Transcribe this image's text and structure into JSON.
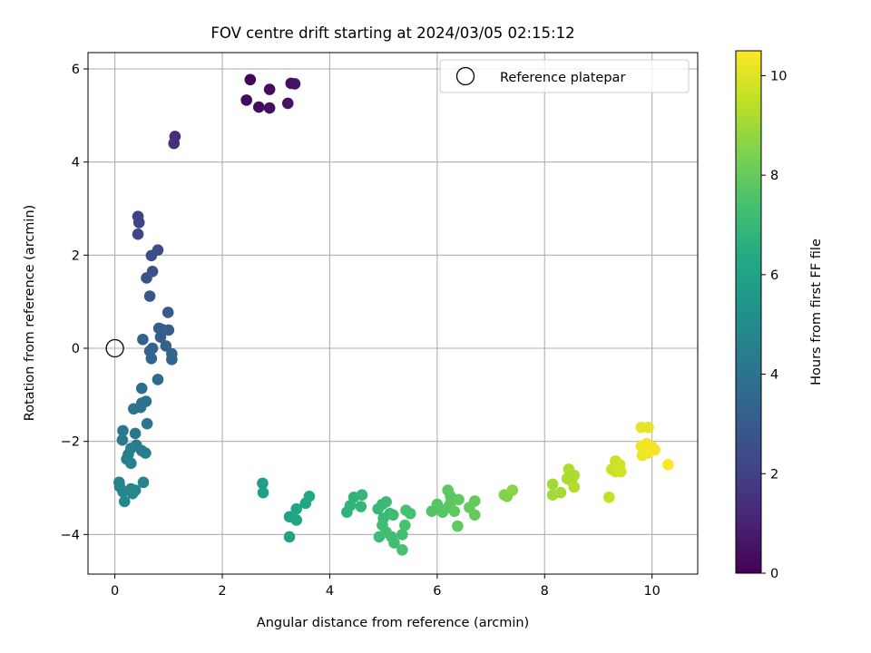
{
  "chart_data": {
    "type": "scatter",
    "title": "FOV centre drift starting at 2024/03/05 02:15:12",
    "xlabel": "Angular distance from reference (arcmin)",
    "ylabel": "Rotation from reference (arcmin)",
    "xlim": [
      -0.5,
      10.85
    ],
    "ylim": [
      -4.85,
      6.35
    ],
    "xticks": [
      0,
      2,
      4,
      6,
      8,
      10
    ],
    "yticks": [
      -4,
      -2,
      0,
      2,
      4,
      6
    ],
    "grid": true,
    "legend": {
      "position": "top-right",
      "entries": [
        "Reference platepar"
      ]
    },
    "reference_point": {
      "x": 0,
      "y": 0
    },
    "colorbar": {
      "label": "Hours from first FF file",
      "range": [
        0,
        10.5
      ],
      "ticks": [
        0,
        2,
        4,
        6,
        8,
        10
      ],
      "colormap": "viridis"
    },
    "points": [
      {
        "x": 2.52,
        "y": 5.77,
        "c": 0.1
      },
      {
        "x": 2.45,
        "y": 5.33,
        "c": 0.2
      },
      {
        "x": 2.68,
        "y": 5.18,
        "c": 0.3
      },
      {
        "x": 2.88,
        "y": 5.56,
        "c": 0.3
      },
      {
        "x": 2.88,
        "y": 5.16,
        "c": 0.4
      },
      {
        "x": 3.22,
        "y": 5.26,
        "c": 0.5
      },
      {
        "x": 3.28,
        "y": 5.69,
        "c": 0.4
      },
      {
        "x": 3.35,
        "y": 5.68,
        "c": 0.5
      },
      {
        "x": 1.12,
        "y": 4.55,
        "c": 1.3
      },
      {
        "x": 1.1,
        "y": 4.4,
        "c": 1.4
      },
      {
        "x": 0.43,
        "y": 2.83,
        "c": 2.0
      },
      {
        "x": 0.45,
        "y": 2.7,
        "c": 2.1
      },
      {
        "x": 0.43,
        "y": 2.45,
        "c": 2.2
      },
      {
        "x": 0.8,
        "y": 2.11,
        "c": 2.4
      },
      {
        "x": 0.68,
        "y": 1.99,
        "c": 2.5
      },
      {
        "x": 0.7,
        "y": 1.65,
        "c": 2.6
      },
      {
        "x": 0.59,
        "y": 1.51,
        "c": 2.7
      },
      {
        "x": 0.65,
        "y": 1.12,
        "c": 2.8
      },
      {
        "x": 0.99,
        "y": 0.77,
        "c": 2.9
      },
      {
        "x": 0.82,
        "y": 0.43,
        "c": 3.0
      },
      {
        "x": 0.88,
        "y": 0.4,
        "c": 3.0
      },
      {
        "x": 1.0,
        "y": 0.39,
        "c": 3.1
      },
      {
        "x": 0.85,
        "y": 0.24,
        "c": 3.1
      },
      {
        "x": 0.52,
        "y": 0.19,
        "c": 3.2
      },
      {
        "x": 0.7,
        "y": 0.0,
        "c": 3.2
      },
      {
        "x": 0.95,
        "y": 0.05,
        "c": 3.3
      },
      {
        "x": 0.65,
        "y": -0.06,
        "c": 3.3
      },
      {
        "x": 0.68,
        "y": -0.22,
        "c": 3.4
      },
      {
        "x": 1.06,
        "y": -0.12,
        "c": 3.4
      },
      {
        "x": 1.06,
        "y": -0.24,
        "c": 3.4
      },
      {
        "x": 0.8,
        "y": -0.67,
        "c": 3.6
      },
      {
        "x": 0.5,
        "y": -0.86,
        "c": 3.8
      },
      {
        "x": 0.5,
        "y": -1.18,
        "c": 3.9
      },
      {
        "x": 0.58,
        "y": -1.14,
        "c": 3.9
      },
      {
        "x": 0.35,
        "y": -1.3,
        "c": 4.0
      },
      {
        "x": 0.48,
        "y": -1.27,
        "c": 4.0
      },
      {
        "x": 0.6,
        "y": -1.62,
        "c": 4.1
      },
      {
        "x": 0.15,
        "y": -1.77,
        "c": 4.2
      },
      {
        "x": 0.38,
        "y": -1.83,
        "c": 4.2
      },
      {
        "x": 0.14,
        "y": -1.97,
        "c": 4.3
      },
      {
        "x": 0.4,
        "y": -2.08,
        "c": 4.3
      },
      {
        "x": 0.3,
        "y": -2.15,
        "c": 4.4
      },
      {
        "x": 0.5,
        "y": -2.2,
        "c": 4.4
      },
      {
        "x": 0.57,
        "y": -2.25,
        "c": 4.5
      },
      {
        "x": 0.25,
        "y": -2.28,
        "c": 4.5
      },
      {
        "x": 0.22,
        "y": -2.38,
        "c": 4.5
      },
      {
        "x": 0.3,
        "y": -2.47,
        "c": 4.6
      },
      {
        "x": 0.08,
        "y": -2.88,
        "c": 4.7
      },
      {
        "x": 0.09,
        "y": -2.97,
        "c": 4.7
      },
      {
        "x": 0.53,
        "y": -2.88,
        "c": 4.7
      },
      {
        "x": 0.3,
        "y": -3.02,
        "c": 4.8
      },
      {
        "x": 0.38,
        "y": -3.05,
        "c": 4.8
      },
      {
        "x": 0.15,
        "y": -3.08,
        "c": 4.8
      },
      {
        "x": 0.33,
        "y": -3.12,
        "c": 4.9
      },
      {
        "x": 0.18,
        "y": -3.29,
        "c": 4.9
      },
      {
        "x": 2.75,
        "y": -2.9,
        "c": 5.8
      },
      {
        "x": 2.76,
        "y": -3.1,
        "c": 5.8
      },
      {
        "x": 3.25,
        "y": -3.62,
        "c": 6.0
      },
      {
        "x": 3.38,
        "y": -3.45,
        "c": 6.1
      },
      {
        "x": 3.38,
        "y": -3.69,
        "c": 6.1
      },
      {
        "x": 3.25,
        "y": -4.05,
        "c": 6.0
      },
      {
        "x": 3.55,
        "y": -3.33,
        "c": 6.2
      },
      {
        "x": 3.62,
        "y": -3.18,
        "c": 6.3
      },
      {
        "x": 4.32,
        "y": -3.52,
        "c": 6.7
      },
      {
        "x": 4.38,
        "y": -3.38,
        "c": 6.8
      },
      {
        "x": 4.45,
        "y": -3.2,
        "c": 6.8
      },
      {
        "x": 4.6,
        "y": -3.15,
        "c": 6.9
      },
      {
        "x": 4.58,
        "y": -3.4,
        "c": 6.9
      },
      {
        "x": 4.9,
        "y": -3.45,
        "c": 7.0
      },
      {
        "x": 4.98,
        "y": -3.35,
        "c": 7.0
      },
      {
        "x": 5.05,
        "y": -3.3,
        "c": 7.1
      },
      {
        "x": 5.12,
        "y": -3.55,
        "c": 7.1
      },
      {
        "x": 5.0,
        "y": -3.65,
        "c": 7.1
      },
      {
        "x": 5.18,
        "y": -3.58,
        "c": 7.2
      },
      {
        "x": 4.98,
        "y": -3.8,
        "c": 7.2
      },
      {
        "x": 5.05,
        "y": -3.95,
        "c": 7.2
      },
      {
        "x": 5.15,
        "y": -4.05,
        "c": 7.3
      },
      {
        "x": 4.92,
        "y": -4.05,
        "c": 7.2
      },
      {
        "x": 5.2,
        "y": -4.18,
        "c": 7.3
      },
      {
        "x": 5.35,
        "y": -4.0,
        "c": 7.3
      },
      {
        "x": 5.4,
        "y": -3.8,
        "c": 7.4
      },
      {
        "x": 5.42,
        "y": -3.48,
        "c": 7.4
      },
      {
        "x": 5.5,
        "y": -3.55,
        "c": 7.4
      },
      {
        "x": 5.35,
        "y": -4.33,
        "c": 7.4
      },
      {
        "x": 5.9,
        "y": -3.5,
        "c": 7.6
      },
      {
        "x": 6.0,
        "y": -3.35,
        "c": 7.7
      },
      {
        "x": 6.1,
        "y": -3.52,
        "c": 7.7
      },
      {
        "x": 6.2,
        "y": -3.05,
        "c": 7.8
      },
      {
        "x": 6.25,
        "y": -3.18,
        "c": 7.8
      },
      {
        "x": 6.25,
        "y": -3.32,
        "c": 7.8
      },
      {
        "x": 6.2,
        "y": -3.42,
        "c": 7.8
      },
      {
        "x": 6.32,
        "y": -3.5,
        "c": 7.9
      },
      {
        "x": 6.4,
        "y": -3.25,
        "c": 7.9
      },
      {
        "x": 6.38,
        "y": -3.82,
        "c": 7.9
      },
      {
        "x": 6.6,
        "y": -3.42,
        "c": 8.0
      },
      {
        "x": 6.7,
        "y": -3.28,
        "c": 8.0
      },
      {
        "x": 6.7,
        "y": -3.58,
        "c": 8.0
      },
      {
        "x": 7.25,
        "y": -3.15,
        "c": 8.5
      },
      {
        "x": 7.3,
        "y": -3.18,
        "c": 8.5
      },
      {
        "x": 7.4,
        "y": -3.05,
        "c": 8.6
      },
      {
        "x": 8.15,
        "y": -2.92,
        "c": 9.0
      },
      {
        "x": 8.15,
        "y": -3.15,
        "c": 9.0
      },
      {
        "x": 8.3,
        "y": -3.1,
        "c": 9.1
      },
      {
        "x": 8.45,
        "y": -2.6,
        "c": 9.2
      },
      {
        "x": 8.42,
        "y": -2.8,
        "c": 9.2
      },
      {
        "x": 8.5,
        "y": -2.85,
        "c": 9.2
      },
      {
        "x": 8.55,
        "y": -2.73,
        "c": 9.2
      },
      {
        "x": 8.55,
        "y": -2.98,
        "c": 9.3
      },
      {
        "x": 9.2,
        "y": -3.2,
        "c": 9.6
      },
      {
        "x": 9.25,
        "y": -2.6,
        "c": 9.7
      },
      {
        "x": 9.32,
        "y": -2.42,
        "c": 9.7
      },
      {
        "x": 9.32,
        "y": -2.65,
        "c": 9.7
      },
      {
        "x": 9.42,
        "y": -2.65,
        "c": 9.8
      },
      {
        "x": 9.4,
        "y": -2.5,
        "c": 9.8
      },
      {
        "x": 9.8,
        "y": -1.7,
        "c": 10.1
      },
      {
        "x": 9.93,
        "y": -1.7,
        "c": 10.1
      },
      {
        "x": 9.8,
        "y": -2.1,
        "c": 10.2
      },
      {
        "x": 9.85,
        "y": -2.2,
        "c": 10.2
      },
      {
        "x": 9.82,
        "y": -2.3,
        "c": 10.2
      },
      {
        "x": 9.9,
        "y": -2.05,
        "c": 10.3
      },
      {
        "x": 9.95,
        "y": -2.15,
        "c": 10.3
      },
      {
        "x": 10.0,
        "y": -2.12,
        "c": 10.3
      },
      {
        "x": 10.05,
        "y": -2.18,
        "c": 10.3
      },
      {
        "x": 9.92,
        "y": -2.25,
        "c": 10.3
      },
      {
        "x": 10.3,
        "y": -2.5,
        "c": 10.5
      }
    ]
  }
}
